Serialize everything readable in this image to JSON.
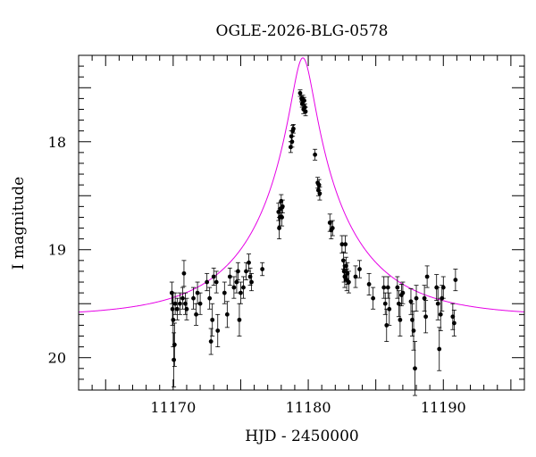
{
  "chart_data": {
    "type": "scatter",
    "title": "OGLE-2026-BLG-0578",
    "xlabel": "HJD - 2450000",
    "ylabel": "I magnitude",
    "xlim": [
      11163,
      11196
    ],
    "ylim": [
      20.3,
      17.2
    ],
    "y_inverted": true,
    "x_major_ticks": [
      11170,
      11180,
      11190
    ],
    "x_tick_labels": [
      "11170",
      "11180",
      "11190"
    ],
    "y_major_ticks": [
      18,
      19,
      20
    ],
    "y_tick_labels": [
      "18",
      "19",
      "20"
    ],
    "grid": false,
    "model": {
      "color": "#e600e6",
      "baseline_mag": 19.62,
      "t0": 11179.6,
      "u0": 0.1105,
      "tE": 7.2
    },
    "series": [
      {
        "points": [
          [
            11169.9,
            19.4,
            0.1
          ],
          [
            11169.95,
            19.55,
            0.15
          ],
          [
            11170.0,
            19.65,
            0.25
          ],
          [
            11170.05,
            20.02,
            0.25
          ],
          [
            11170.1,
            19.88,
            0.2
          ],
          [
            11170.15,
            19.5,
            0.1
          ],
          [
            11170.3,
            19.55,
            0.1
          ],
          [
            11170.5,
            19.5,
            0.1
          ],
          [
            11170.7,
            19.45,
            0.1
          ],
          [
            11170.8,
            19.22,
            0.12
          ],
          [
            11170.9,
            19.5,
            0.1
          ],
          [
            11171.0,
            19.55,
            0.1
          ],
          [
            11171.5,
            19.45,
            0.1
          ],
          [
            11171.7,
            19.6,
            0.1
          ],
          [
            11171.8,
            19.4,
            0.1
          ],
          [
            11172.0,
            19.5,
            0.1
          ],
          [
            11172.5,
            19.3,
            0.08
          ],
          [
            11172.7,
            19.45,
            0.1
          ],
          [
            11172.8,
            19.85,
            0.12
          ],
          [
            11172.9,
            19.65,
            0.15
          ],
          [
            11173.0,
            19.25,
            0.08
          ],
          [
            11173.2,
            19.3,
            0.1
          ],
          [
            11173.3,
            19.75,
            0.15
          ],
          [
            11173.8,
            19.4,
            0.1
          ],
          [
            11174.0,
            19.6,
            0.12
          ],
          [
            11174.2,
            19.25,
            0.08
          ],
          [
            11174.5,
            19.35,
            0.1
          ],
          [
            11174.7,
            19.3,
            0.1
          ],
          [
            11174.8,
            19.2,
            0.08
          ],
          [
            11174.9,
            19.65,
            0.15
          ],
          [
            11175.0,
            19.4,
            0.1
          ],
          [
            11175.2,
            19.35,
            0.1
          ],
          [
            11175.4,
            19.2,
            0.08
          ],
          [
            11175.6,
            19.12,
            0.08
          ],
          [
            11175.7,
            19.25,
            0.08
          ],
          [
            11175.8,
            19.3,
            0.08
          ],
          [
            11176.6,
            19.18,
            0.06
          ],
          [
            11177.8,
            18.65,
            0.08
          ],
          [
            11177.85,
            18.8,
            0.1
          ],
          [
            11177.9,
            18.7,
            0.08
          ],
          [
            11177.95,
            18.62,
            0.06
          ],
          [
            11178.0,
            18.55,
            0.06
          ],
          [
            11178.05,
            18.7,
            0.08
          ],
          [
            11178.1,
            18.6,
            0.06
          ],
          [
            11178.7,
            18.05,
            0.05
          ],
          [
            11178.75,
            17.95,
            0.05
          ],
          [
            11178.8,
            18.0,
            0.05
          ],
          [
            11178.85,
            17.9,
            0.05
          ],
          [
            11178.9,
            17.88,
            0.04
          ],
          [
            11179.4,
            17.55,
            0.03
          ],
          [
            11179.5,
            17.6,
            0.03
          ],
          [
            11179.55,
            17.65,
            0.03
          ],
          [
            11179.6,
            17.6,
            0.03
          ],
          [
            11179.65,
            17.7,
            0.04
          ],
          [
            11179.7,
            17.62,
            0.03
          ],
          [
            11179.75,
            17.68,
            0.03
          ],
          [
            11179.8,
            17.72,
            0.04
          ],
          [
            11180.5,
            18.12,
            0.05
          ],
          [
            11180.7,
            18.38,
            0.05
          ],
          [
            11180.75,
            18.45,
            0.05
          ],
          [
            11180.8,
            18.4,
            0.05
          ],
          [
            11180.85,
            18.48,
            0.06
          ],
          [
            11181.6,
            18.75,
            0.08
          ],
          [
            11181.7,
            18.82,
            0.08
          ],
          [
            11181.8,
            18.8,
            0.07
          ],
          [
            11182.5,
            18.95,
            0.08
          ],
          [
            11182.6,
            19.1,
            0.08
          ],
          [
            11182.65,
            19.2,
            0.1
          ],
          [
            11182.7,
            19.25,
            0.1
          ],
          [
            11182.75,
            18.95,
            0.08
          ],
          [
            11182.8,
            19.15,
            0.08
          ],
          [
            11182.85,
            19.28,
            0.1
          ],
          [
            11182.9,
            19.22,
            0.1
          ],
          [
            11183.0,
            19.3,
            0.1
          ],
          [
            11183.5,
            19.25,
            0.1
          ],
          [
            11183.8,
            19.18,
            0.08
          ],
          [
            11184.5,
            19.32,
            0.1
          ],
          [
            11184.8,
            19.45,
            0.1
          ],
          [
            11185.6,
            19.35,
            0.1
          ],
          [
            11185.7,
            19.5,
            0.1
          ],
          [
            11185.8,
            19.7,
            0.15
          ],
          [
            11185.9,
            19.35,
            0.1
          ],
          [
            11186.0,
            19.55,
            0.15
          ],
          [
            11186.6,
            19.35,
            0.1
          ],
          [
            11186.7,
            19.5,
            0.12
          ],
          [
            11186.8,
            19.65,
            0.15
          ],
          [
            11186.9,
            19.42,
            0.1
          ],
          [
            11187.0,
            19.4,
            0.1
          ],
          [
            11187.6,
            19.48,
            0.12
          ],
          [
            11187.7,
            19.65,
            0.15
          ],
          [
            11187.8,
            19.75,
            0.18
          ],
          [
            11187.9,
            20.1,
            0.25
          ],
          [
            11188.0,
            19.45,
            0.12
          ],
          [
            11188.6,
            19.45,
            0.12
          ],
          [
            11188.7,
            19.62,
            0.15
          ],
          [
            11188.8,
            19.25,
            0.1
          ],
          [
            11189.5,
            19.35,
            0.12
          ],
          [
            11189.6,
            19.5,
            0.15
          ],
          [
            11189.7,
            19.92,
            0.2
          ],
          [
            11189.8,
            19.6,
            0.15
          ],
          [
            11189.9,
            19.45,
            0.12
          ],
          [
            11190.0,
            19.35,
            0.1
          ],
          [
            11190.7,
            19.62,
            0.12
          ],
          [
            11190.8,
            19.68,
            0.12
          ],
          [
            11190.9,
            19.28,
            0.1
          ]
        ]
      }
    ]
  }
}
